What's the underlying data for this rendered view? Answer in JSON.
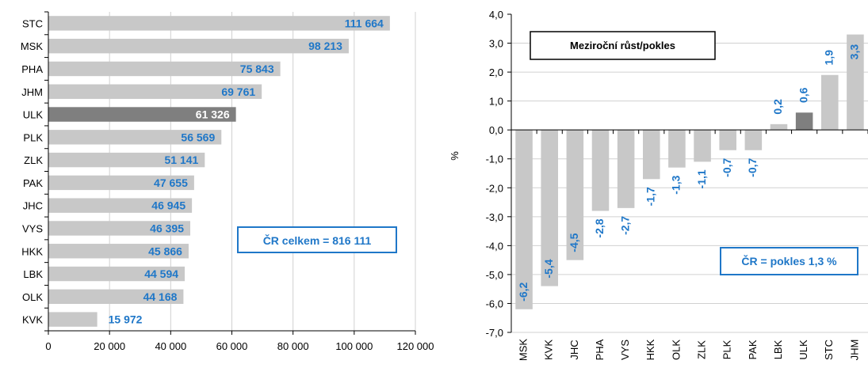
{
  "colors": {
    "bar": "#c8c8c8",
    "highlight": "#7f7f7f",
    "value_text": "#1f77c8",
    "highlight_text": "#ffffff",
    "grid": "#d0d0d0",
    "axis": "#000000",
    "box_border": "#1f77c8"
  },
  "chart_data": [
    {
      "type": "bar",
      "orientation": "horizontal",
      "categories": [
        "STC",
        "MSK",
        "PHA",
        "JHM",
        "ULK",
        "PLK",
        "ZLK",
        "PAK",
        "JHC",
        "VYS",
        "HKK",
        "LBK",
        "OLK",
        "KVK"
      ],
      "values": [
        111664,
        98213,
        75843,
        69761,
        61326,
        56569,
        51141,
        47655,
        46945,
        46395,
        45866,
        44594,
        44168,
        15972
      ],
      "value_labels": [
        "111 664",
        "98 213",
        "75 843",
        "69 761",
        "61 326",
        "56 569",
        "51 141",
        "47 655",
        "46 945",
        "46 395",
        "45 866",
        "44 594",
        "44 168",
        "15 972"
      ],
      "highlight": "ULK",
      "xlim": [
        0,
        120000
      ],
      "ticks": [
        0,
        20000,
        40000,
        60000,
        80000,
        100000,
        120000
      ],
      "tick_labels": [
        "0",
        "20 000",
        "40 000",
        "60 000",
        "80 000",
        "100 000",
        "120 000"
      ],
      "grid": true,
      "annotation": "ČR celkem = 816 111"
    },
    {
      "type": "bar",
      "orientation": "vertical",
      "title": "Meziroční růst/pokles",
      "categories": [
        "MSK",
        "KVK",
        "JHC",
        "PHA",
        "VYS",
        "HKK",
        "OLK",
        "ZLK",
        "PLK",
        "PAK",
        "LBK",
        "ULK",
        "STC",
        "JHM"
      ],
      "values": [
        -6.2,
        -5.4,
        -4.5,
        -2.8,
        -2.7,
        -1.7,
        -1.3,
        -1.1,
        -0.7,
        -0.7,
        0.2,
        0.6,
        1.9,
        3.3
      ],
      "value_labels": [
        "-6,2",
        "-5,4",
        "-4,5",
        "-2,8",
        "-2,7",
        "-1,7",
        "-1,3",
        "-1,1",
        "-0,7",
        "-0,7",
        "0,2",
        "0,6",
        "1,9",
        "3,3"
      ],
      "highlight": "ULK",
      "ylabel": "%",
      "ylim": [
        -7,
        4
      ],
      "ticks": [
        4,
        3,
        2,
        1,
        0,
        -1,
        -2,
        -3,
        -4,
        -5,
        -6,
        -7
      ],
      "tick_labels": [
        "4,0",
        "3,0",
        "2,0",
        "1,0",
        "0,0",
        "-1,0",
        "-2,0",
        "-3,0",
        "-4,0",
        "-5,0",
        "-6,0",
        "-7,0"
      ],
      "grid": true,
      "annotation": "ČR = pokles 1,3 %"
    }
  ]
}
